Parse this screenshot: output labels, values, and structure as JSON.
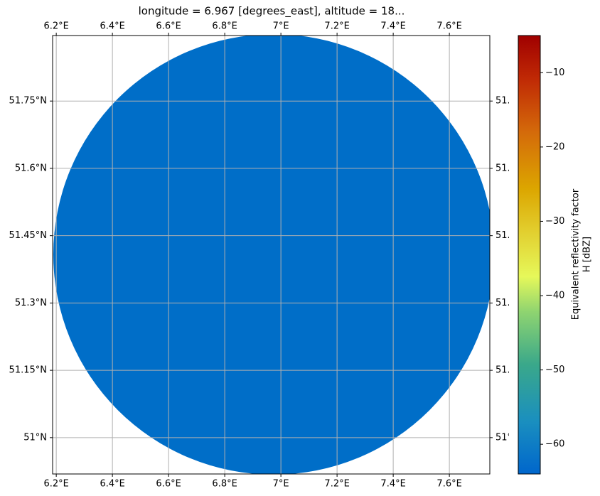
{
  "chart_data": {
    "type": "map",
    "title": "longitude = 6.967 [degrees_east], altitude = 18...",
    "fill_color": "#006ec8",
    "grid": true,
    "xlim": [
      6.187,
      7.744
    ],
    "ylim": [
      50.919,
      51.896
    ],
    "xticks": [
      {
        "value": 6.2,
        "label": "6.2°E"
      },
      {
        "value": 6.4,
        "label": "6.4°E"
      },
      {
        "value": 6.6,
        "label": "6.6°E"
      },
      {
        "value": 6.8,
        "label": "6.8°E"
      },
      {
        "value": 7,
        "label": "7°E"
      },
      {
        "value": 7.2,
        "label": "7.2°E"
      },
      {
        "value": 7.4,
        "label": "7.4°E"
      },
      {
        "value": 7.6,
        "label": "7.6°E"
      }
    ],
    "yticks": [
      {
        "value": 51,
        "label": "51°N"
      },
      {
        "value": 51.15,
        "label": "51.15°N"
      },
      {
        "value": 51.3,
        "label": "51.3°N"
      },
      {
        "value": 51.45,
        "label": "51.45°N"
      },
      {
        "value": 51.6,
        "label": "51.6°N"
      },
      {
        "value": 51.75,
        "label": "51.75°N"
      }
    ],
    "colorbar": {
      "label": [
        "Equivalent reflectivity factor",
        "H [dBZ]"
      ],
      "lim": [
        -64,
        -5
      ],
      "ticks": [
        {
          "value": -60,
          "label": "−60"
        },
        {
          "value": -50,
          "label": "−50"
        },
        {
          "value": -40,
          "label": "−40"
        },
        {
          "value": -30,
          "label": "−30"
        },
        {
          "value": -20,
          "label": "−20"
        },
        {
          "value": -10,
          "label": "−10"
        }
      ]
    }
  }
}
